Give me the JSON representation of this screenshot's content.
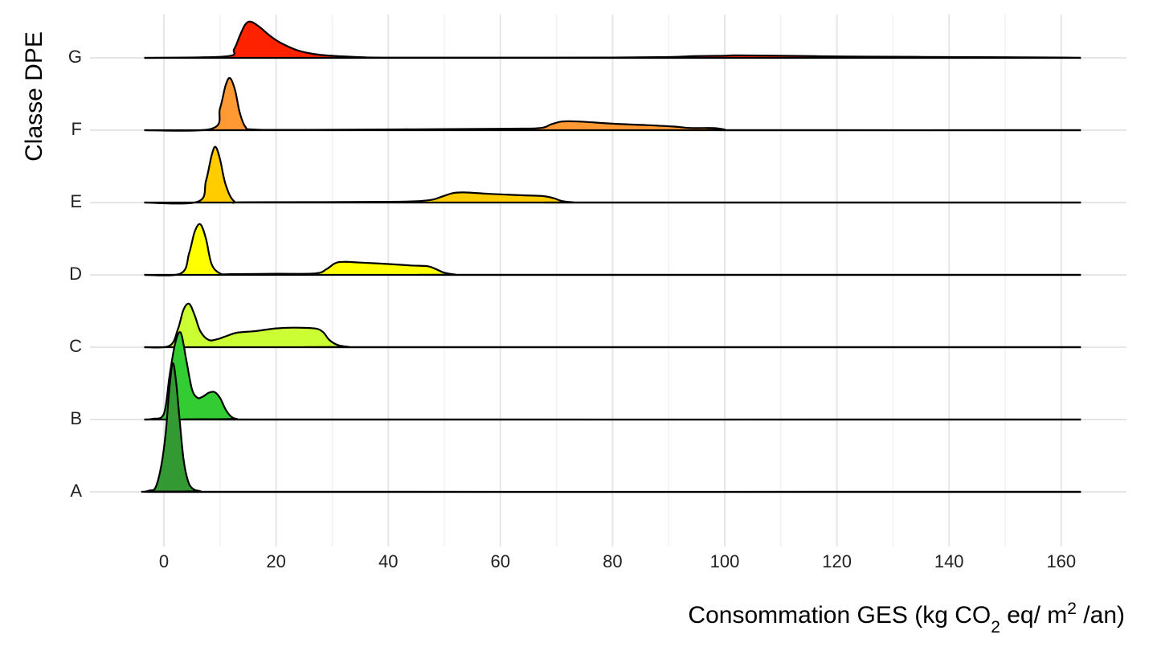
{
  "chart_data": {
    "type": "ridgeline",
    "xlabel": {
      "prefix": "Consommation GES (kg CO",
      "sub": "2",
      "middle": " eq/ m",
      "sup": "2",
      "suffix": " /an)"
    },
    "ylabel": "Classe DPE",
    "xlim": [
      -4,
      172
    ],
    "x_ticks": [
      0,
      20,
      40,
      60,
      80,
      100,
      120,
      140,
      160
    ],
    "x_range_drawn": [
      -3.5,
      163.5
    ],
    "grid": true,
    "categories": [
      "A",
      "B",
      "C",
      "D",
      "E",
      "F",
      "G"
    ],
    "series": [
      {
        "name": "A",
        "color": "#339933",
        "density": [
          [
            -3.5,
            0
          ],
          [
            -2.5,
            0.02
          ],
          [
            -1.5,
            0.06
          ],
          [
            -0.5,
            0.35
          ],
          [
            0.3,
            0.8
          ],
          [
            1.0,
            1.45
          ],
          [
            1.6,
            1.78
          ],
          [
            2.2,
            1.5
          ],
          [
            2.8,
            1.0
          ],
          [
            3.5,
            0.45
          ],
          [
            4.3,
            0.15
          ],
          [
            5.2,
            0.04
          ],
          [
            6.5,
            0.01
          ],
          [
            8.0,
            0
          ],
          [
            163.5,
            0
          ]
        ]
      },
      {
        "name": "B",
        "color": "#33cc33",
        "density": [
          [
            -3.5,
            0
          ],
          [
            -2,
            0.01
          ],
          [
            0,
            0.08
          ],
          [
            1,
            0.6
          ],
          [
            2,
            1.05
          ],
          [
            3,
            1.2
          ],
          [
            4,
            0.82
          ],
          [
            5,
            0.42
          ],
          [
            6,
            0.3
          ],
          [
            7,
            0.32
          ],
          [
            8,
            0.37
          ],
          [
            9,
            0.38
          ],
          [
            10,
            0.3
          ],
          [
            11,
            0.14
          ],
          [
            12,
            0.04
          ],
          [
            13,
            0.01
          ],
          [
            15,
            0
          ],
          [
            163.5,
            0
          ]
        ]
      },
      {
        "name": "C",
        "color": "#ccff33",
        "density": [
          [
            -3.5,
            0
          ],
          [
            1,
            0.02
          ],
          [
            2.5,
            0.25
          ],
          [
            3.5,
            0.52
          ],
          [
            4.5,
            0.6
          ],
          [
            5.5,
            0.44
          ],
          [
            6.5,
            0.22
          ],
          [
            8,
            0.1
          ],
          [
            9.5,
            0.11
          ],
          [
            11,
            0.15
          ],
          [
            13,
            0.2
          ],
          [
            16,
            0.22
          ],
          [
            18,
            0.24
          ],
          [
            20,
            0.26
          ],
          [
            23,
            0.27
          ],
          [
            26,
            0.265
          ],
          [
            27.5,
            0.25
          ],
          [
            28.5,
            0.2
          ],
          [
            29.5,
            0.1
          ],
          [
            31,
            0.03
          ],
          [
            33,
            0.005
          ],
          [
            35,
            0
          ],
          [
            163.5,
            0
          ]
        ]
      },
      {
        "name": "D",
        "color": "#ffff00",
        "density": [
          [
            -3.5,
            0
          ],
          [
            3,
            0.02
          ],
          [
            4.5,
            0.3
          ],
          [
            5.5,
            0.6
          ],
          [
            6.5,
            0.7
          ],
          [
            7.5,
            0.5
          ],
          [
            8.5,
            0.15
          ],
          [
            10,
            0.02
          ],
          [
            12,
            0.01
          ],
          [
            20,
            0.015
          ],
          [
            27,
            0.02
          ],
          [
            29,
            0.08
          ],
          [
            30.5,
            0.16
          ],
          [
            32,
            0.18
          ],
          [
            35,
            0.17
          ],
          [
            40,
            0.15
          ],
          [
            44,
            0.13
          ],
          [
            47,
            0.12
          ],
          [
            48.5,
            0.08
          ],
          [
            50,
            0.03
          ],
          [
            52,
            0.005
          ],
          [
            54,
            0
          ],
          [
            163.5,
            0
          ]
        ]
      },
      {
        "name": "E",
        "color": "#ffcc00",
        "density": [
          [
            -3.5,
            0
          ],
          [
            6,
            0.01
          ],
          [
            7.5,
            0.3
          ],
          [
            8.5,
            0.65
          ],
          [
            9.2,
            0.77
          ],
          [
            10,
            0.6
          ],
          [
            11,
            0.25
          ],
          [
            12.5,
            0.02
          ],
          [
            15,
            0.005
          ],
          [
            40,
            0.01
          ],
          [
            47,
            0.03
          ],
          [
            49.5,
            0.08
          ],
          [
            51.5,
            0.13
          ],
          [
            53.5,
            0.14
          ],
          [
            58,
            0.12
          ],
          [
            64,
            0.1
          ],
          [
            67.5,
            0.09
          ],
          [
            69.5,
            0.06
          ],
          [
            71,
            0.02
          ],
          [
            73,
            0.003
          ],
          [
            75,
            0
          ],
          [
            163.5,
            0
          ]
        ]
      },
      {
        "name": "F",
        "color": "#ff9933",
        "density": [
          [
            -3.5,
            0
          ],
          [
            8.5,
            0.02
          ],
          [
            10,
            0.3
          ],
          [
            11,
            0.62
          ],
          [
            11.8,
            0.72
          ],
          [
            12.7,
            0.55
          ],
          [
            13.5,
            0.25
          ],
          [
            14.5,
            0.05
          ],
          [
            16,
            0.01
          ],
          [
            25,
            0.005
          ],
          [
            60,
            0.02
          ],
          [
            67,
            0.03
          ],
          [
            69,
            0.08
          ],
          [
            71,
            0.12
          ],
          [
            74,
            0.12
          ],
          [
            80,
            0.09
          ],
          [
            86,
            0.07
          ],
          [
            91,
            0.05
          ],
          [
            94,
            0.03
          ],
          [
            98,
            0.03
          ],
          [
            100,
            0.01
          ],
          [
            102,
            0
          ],
          [
            163.5,
            0
          ]
        ]
      },
      {
        "name": "G",
        "color": "#ff2200",
        "density": [
          [
            -3.5,
            0
          ],
          [
            11,
            0.02
          ],
          [
            12.5,
            0.12
          ],
          [
            13.5,
            0.3
          ],
          [
            14.5,
            0.46
          ],
          [
            15.5,
            0.5
          ],
          [
            17,
            0.43
          ],
          [
            19,
            0.3
          ],
          [
            21,
            0.2
          ],
          [
            24,
            0.1
          ],
          [
            28,
            0.04
          ],
          [
            35,
            0.01
          ],
          [
            40,
            0.003
          ],
          [
            60,
            0.003
          ],
          [
            80,
            0.005
          ],
          [
            90,
            0.012
          ],
          [
            95,
            0.025
          ],
          [
            100,
            0.03
          ],
          [
            102,
            0.035
          ],
          [
            110,
            0.03
          ],
          [
            120,
            0.02
          ],
          [
            130,
            0.015
          ],
          [
            140,
            0.012
          ],
          [
            150,
            0.008
          ],
          [
            160,
            0.005
          ],
          [
            163.5,
            0
          ]
        ]
      }
    ]
  }
}
